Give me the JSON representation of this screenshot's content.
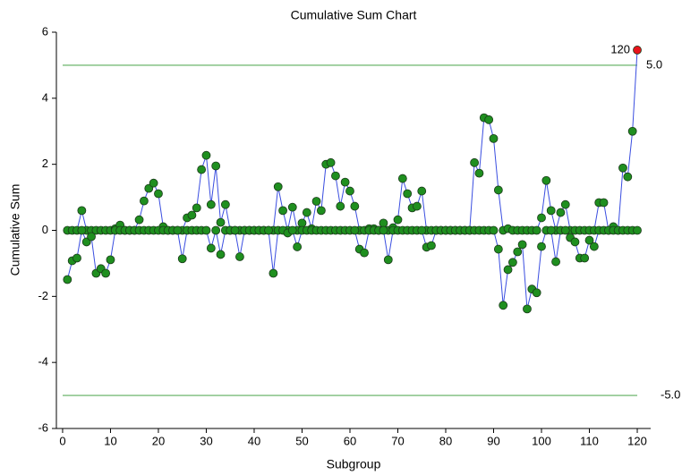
{
  "chart_data": {
    "type": "cusum",
    "title": "Cumulative Sum Chart",
    "x_label": "Subgroup",
    "y_label": "Cumulative Sum",
    "x": [
      1,
      2,
      3,
      4,
      5,
      6,
      7,
      8,
      9,
      10,
      11,
      12,
      13,
      14,
      15,
      16,
      17,
      18,
      19,
      20,
      21,
      22,
      23,
      24,
      25,
      26,
      27,
      28,
      29,
      30,
      31,
      32,
      33,
      34,
      35,
      36,
      37,
      38,
      39,
      40,
      41,
      42,
      43,
      44,
      45,
      46,
      47,
      48,
      49,
      50,
      51,
      52,
      53,
      54,
      55,
      56,
      57,
      58,
      59,
      60,
      61,
      62,
      63,
      64,
      65,
      66,
      67,
      68,
      69,
      70,
      71,
      72,
      73,
      74,
      75,
      76,
      77,
      78,
      79,
      80,
      81,
      82,
      83,
      84,
      85,
      86,
      87,
      88,
      89,
      90,
      91,
      92,
      93,
      94,
      95,
      96,
      97,
      98,
      99,
      100,
      101,
      102,
      103,
      104,
      105,
      106,
      107,
      108,
      109,
      110,
      111,
      112,
      113,
      114,
      115,
      116,
      117,
      118,
      119,
      120
    ],
    "series": [
      {
        "color": "#1f8f1f",
        "line_color": "#3a4ee0",
        "values": [
          0,
          0,
          0,
          0.6,
          0,
          0,
          0,
          0,
          0,
          0,
          0.05,
          0.16,
          0,
          0,
          0,
          0.32,
          0.89,
          1.27,
          1.43,
          1.11,
          0.11,
          0,
          0,
          0,
          0,
          0.38,
          0.46,
          0.68,
          1.84,
          2.27,
          0.78,
          1.95,
          0.24,
          0.78,
          0,
          0,
          0,
          0,
          0,
          0,
          0,
          0,
          0,
          0,
          1.32,
          0.6,
          0,
          0.7,
          0,
          0.22,
          0.54,
          0.05,
          0.88,
          0.6,
          2.0,
          2.05,
          1.65,
          0.73,
          1.46,
          1.19,
          0.73,
          0,
          0,
          0.05,
          0.05,
          0,
          0.22,
          0,
          0.08,
          0.32,
          1.57,
          1.11,
          0.68,
          0.73,
          1.19,
          0,
          0,
          0,
          0,
          0,
          0,
          0,
          0,
          0,
          0,
          2.05,
          1.73,
          3.41,
          3.35,
          2.78,
          1.22,
          0,
          0.05,
          0,
          0,
          0,
          0,
          0,
          0,
          0.38,
          1.51,
          0.6,
          0,
          0.54,
          0.78,
          0,
          0,
          0,
          0,
          0,
          0,
          0.84,
          0.84,
          0,
          0.11,
          0,
          1.89,
          1.62,
          3.0,
          5.46
        ]
      },
      {
        "color": "#1f8f1f",
        "line_color": "#3a4ee0",
        "values": [
          -1.49,
          -0.92,
          -0.84,
          0,
          -0.35,
          -0.19,
          -1.3,
          -1.16,
          -1.3,
          -0.89,
          0,
          0,
          0,
          0,
          0,
          0,
          0,
          0,
          0,
          0,
          0,
          0,
          0,
          0,
          -0.86,
          0,
          0,
          0,
          0,
          0,
          -0.54,
          0,
          -0.73,
          0,
          0,
          0,
          -0.8,
          0,
          0,
          0,
          0,
          0,
          0,
          -1.3,
          0,
          0,
          -0.08,
          0,
          -0.5,
          0,
          0,
          0,
          0,
          0,
          0,
          0,
          0,
          0,
          0,
          0,
          0,
          -0.57,
          -0.68,
          0,
          0,
          0,
          0,
          -0.89,
          0,
          0,
          0,
          0,
          0,
          0,
          0,
          -0.51,
          -0.46,
          0,
          0,
          0,
          0,
          0,
          0,
          0,
          0,
          0,
          0,
          0,
          0,
          0,
          -0.57,
          -2.27,
          -1.19,
          -0.97,
          -0.65,
          -0.43,
          -2.38,
          -1.78,
          -1.89,
          -0.49,
          0,
          0,
          -0.95,
          0,
          0,
          -0.22,
          -0.35,
          -0.84,
          -0.84,
          -0.3,
          -0.49,
          0,
          0,
          0,
          0,
          0,
          0,
          0,
          0,
          0
        ]
      }
    ],
    "limits": [
      {
        "value": 5,
        "label": "5.0"
      },
      {
        "value": -5,
        "label": "-5.0"
      }
    ],
    "limit_color": "#5cad5c",
    "outlier_color": "#e8141c",
    "xlim": [
      -1.3,
      122.8
    ],
    "ylim": [
      -6,
      6
    ],
    "xticks": [
      0,
      10,
      20,
      30,
      40,
      50,
      60,
      70,
      80,
      90,
      100,
      110,
      120
    ],
    "yticks": [
      -6,
      -4,
      -2,
      0,
      2,
      4,
      6
    ]
  }
}
